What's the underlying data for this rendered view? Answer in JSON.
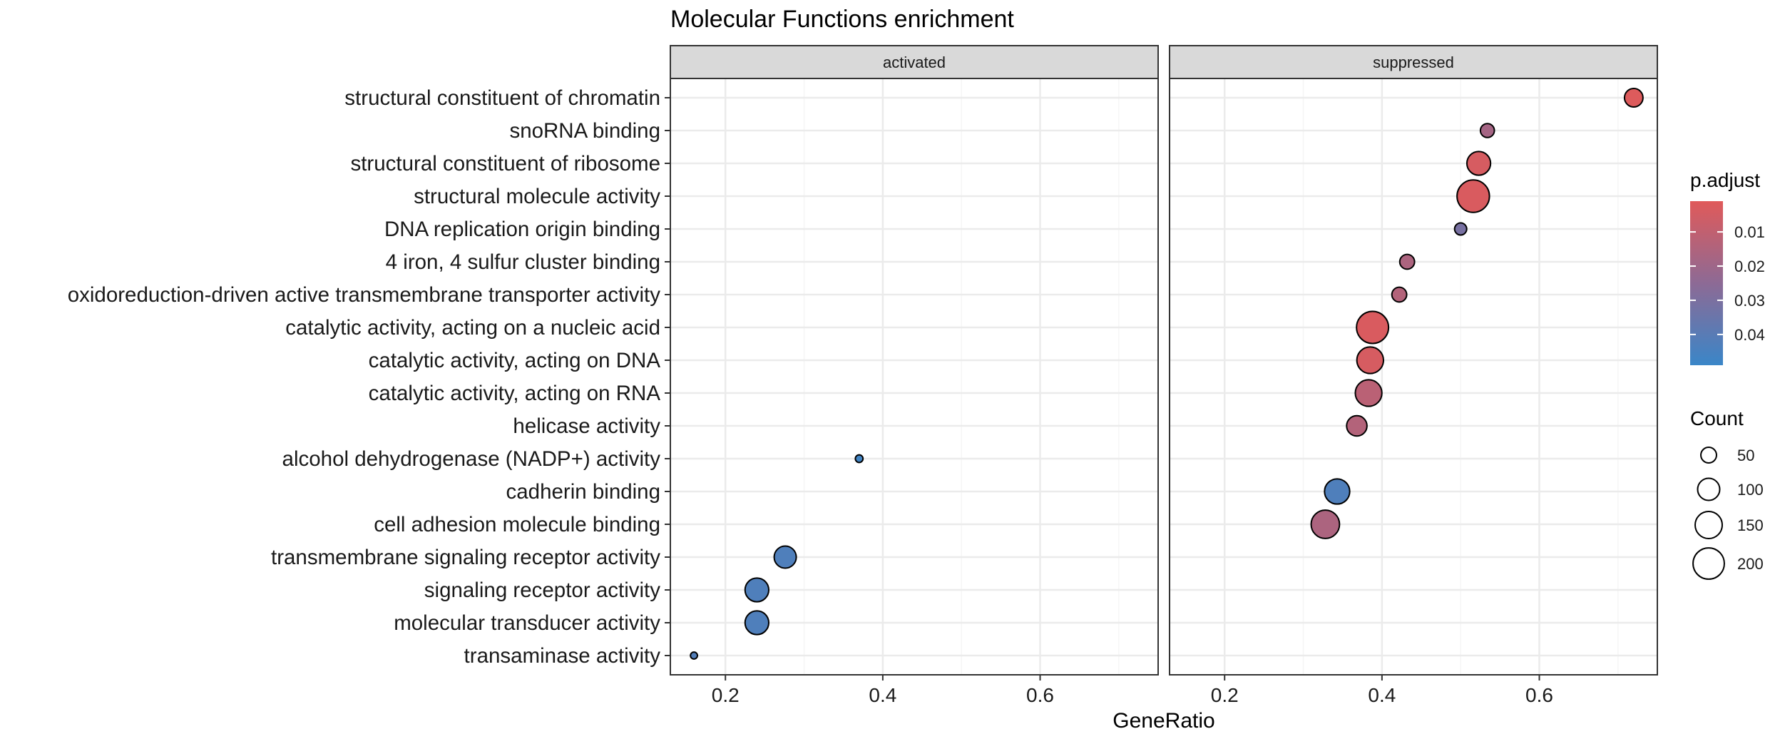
{
  "chart_data": {
    "type": "scatter",
    "title": "Molecular Functions enrichment",
    "xlabel": "GeneRatio",
    "ylabel": "",
    "facets": [
      "activated",
      "suppressed"
    ],
    "xlim": [
      0.13,
      0.75
    ],
    "x_ticks": [
      0.2,
      0.4,
      0.6
    ],
    "x_tick_labels": [
      "0.2",
      "0.4",
      "0.6"
    ],
    "grid": true,
    "legend_placement": "right",
    "categories": [
      "structural constituent of chromatin",
      "snoRNA binding",
      "structural constituent of ribosome",
      "structural molecule activity",
      "DNA replication origin binding",
      "4 iron, 4 sulfur cluster binding",
      "oxidoreduction-driven active transmembrane transporter activity",
      "catalytic activity, acting on a nucleic acid",
      "catalytic activity, acting on DNA",
      "catalytic activity, acting on RNA",
      "helicase activity",
      "alcohol dehydrogenase (NADP+) activity",
      "cadherin binding",
      "cell adhesion molecule binding",
      "transmembrane signaling receptor activity",
      "signaling receptor activity",
      "molecular transducer activity",
      "transaminase activity"
    ],
    "points": [
      {
        "facet": "activated",
        "category": "alcohol dehydrogenase (NADP+) activity",
        "x": 0.37,
        "count": 12,
        "p_adjust": 0.047
      },
      {
        "facet": "activated",
        "category": "transmembrane signaling receptor activity",
        "x": 0.276,
        "count": 100,
        "p_adjust": 0.043
      },
      {
        "facet": "activated",
        "category": "signaling receptor activity",
        "x": 0.24,
        "count": 115,
        "p_adjust": 0.043
      },
      {
        "facet": "activated",
        "category": "molecular transducer activity",
        "x": 0.24,
        "count": 115,
        "p_adjust": 0.043
      },
      {
        "facet": "activated",
        "category": "transaminase activity",
        "x": 0.16,
        "count": 10,
        "p_adjust": 0.042
      },
      {
        "facet": "suppressed",
        "category": "structural constituent of chromatin",
        "x": 0.72,
        "count": 70,
        "p_adjust": 0.002
      },
      {
        "facet": "suppressed",
        "category": "snoRNA binding",
        "x": 0.534,
        "count": 40,
        "p_adjust": 0.018
      },
      {
        "facet": "suppressed",
        "category": "structural constituent of ribosome",
        "x": 0.523,
        "count": 115,
        "p_adjust": 0.004
      },
      {
        "facet": "suppressed",
        "category": "structural molecule activity",
        "x": 0.516,
        "count": 215,
        "p_adjust": 0.003
      },
      {
        "facet": "suppressed",
        "category": "DNA replication origin binding",
        "x": 0.5,
        "count": 30,
        "p_adjust": 0.031
      },
      {
        "facet": "suppressed",
        "category": "4 iron, 4 sulfur cluster binding",
        "x": 0.432,
        "count": 45,
        "p_adjust": 0.016
      },
      {
        "facet": "suppressed",
        "category": "oxidoreduction-driven active transmembrane transporter activity",
        "x": 0.422,
        "count": 45,
        "p_adjust": 0.014
      },
      {
        "facet": "suppressed",
        "category": "catalytic activity, acting on a nucleic acid",
        "x": 0.388,
        "count": 210,
        "p_adjust": 0.003
      },
      {
        "facet": "suppressed",
        "category": "catalytic activity, acting on DNA",
        "x": 0.385,
        "count": 145,
        "p_adjust": 0.004
      },
      {
        "facet": "suppressed",
        "category": "catalytic activity, acting on RNA",
        "x": 0.383,
        "count": 145,
        "p_adjust": 0.012
      },
      {
        "facet": "suppressed",
        "category": "helicase activity",
        "x": 0.368,
        "count": 85,
        "p_adjust": 0.014
      },
      {
        "facet": "suppressed",
        "category": "cadherin binding",
        "x": 0.343,
        "count": 130,
        "p_adjust": 0.043
      },
      {
        "facet": "suppressed",
        "category": "cell adhesion molecule binding",
        "x": 0.328,
        "count": 165,
        "p_adjust": 0.016
      }
    ],
    "color_legend": {
      "title": "p.adjust",
      "range": [
        0.001,
        0.049
      ],
      "ticks": [
        0.01,
        0.02,
        0.03,
        0.04
      ],
      "tick_labels": [
        "0.01",
        "0.02",
        "0.03",
        "0.04"
      ],
      "low_color": "#E05A5A",
      "high_color": "#3A86C8"
    },
    "size_legend": {
      "title": "Count",
      "values": [
        50,
        100,
        150,
        200
      ],
      "labels": [
        "50",
        "100",
        "150",
        "200"
      ]
    },
    "colors": {
      "panel_border": "#333333",
      "strip_fill": "#D9D9D9",
      "grid_major": "#EBEBEB",
      "grid_minor": "#F5F5F5"
    }
  }
}
